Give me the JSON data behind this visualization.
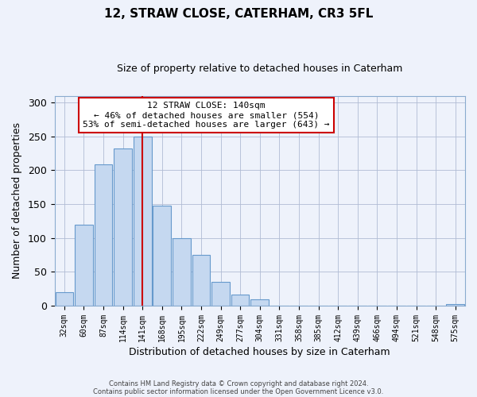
{
  "title": "12, STRAW CLOSE, CATERHAM, CR3 5FL",
  "subtitle": "Size of property relative to detached houses in Caterham",
  "xlabel": "Distribution of detached houses by size in Caterham",
  "ylabel": "Number of detached properties",
  "bar_color": "#c5d8f0",
  "bar_edge_color": "#6699cc",
  "background_color": "#eef2fb",
  "bins": [
    "32sqm",
    "60sqm",
    "87sqm",
    "114sqm",
    "141sqm",
    "168sqm",
    "195sqm",
    "222sqm",
    "249sqm",
    "277sqm",
    "304sqm",
    "331sqm",
    "358sqm",
    "385sqm",
    "412sqm",
    "439sqm",
    "466sqm",
    "494sqm",
    "521sqm",
    "548sqm",
    "575sqm"
  ],
  "values": [
    20,
    120,
    209,
    232,
    250,
    148,
    100,
    75,
    35,
    16,
    10,
    0,
    0,
    0,
    0,
    0,
    0,
    0,
    0,
    0,
    2
  ],
  "ylim": [
    0,
    310
  ],
  "yticks": [
    0,
    50,
    100,
    150,
    200,
    250,
    300
  ],
  "vline_index": 4,
  "vline_color": "#cc0000",
  "annotation_title": "12 STRAW CLOSE: 140sqm",
  "annotation_line1": "← 46% of detached houses are smaller (554)",
  "annotation_line2": "53% of semi-detached houses are larger (643) →",
  "annotation_box_color": "#ffffff",
  "annotation_box_edge": "#cc0000",
  "footer1": "Contains HM Land Registry data © Crown copyright and database right 2024.",
  "footer2": "Contains public sector information licensed under the Open Government Licence v3.0."
}
